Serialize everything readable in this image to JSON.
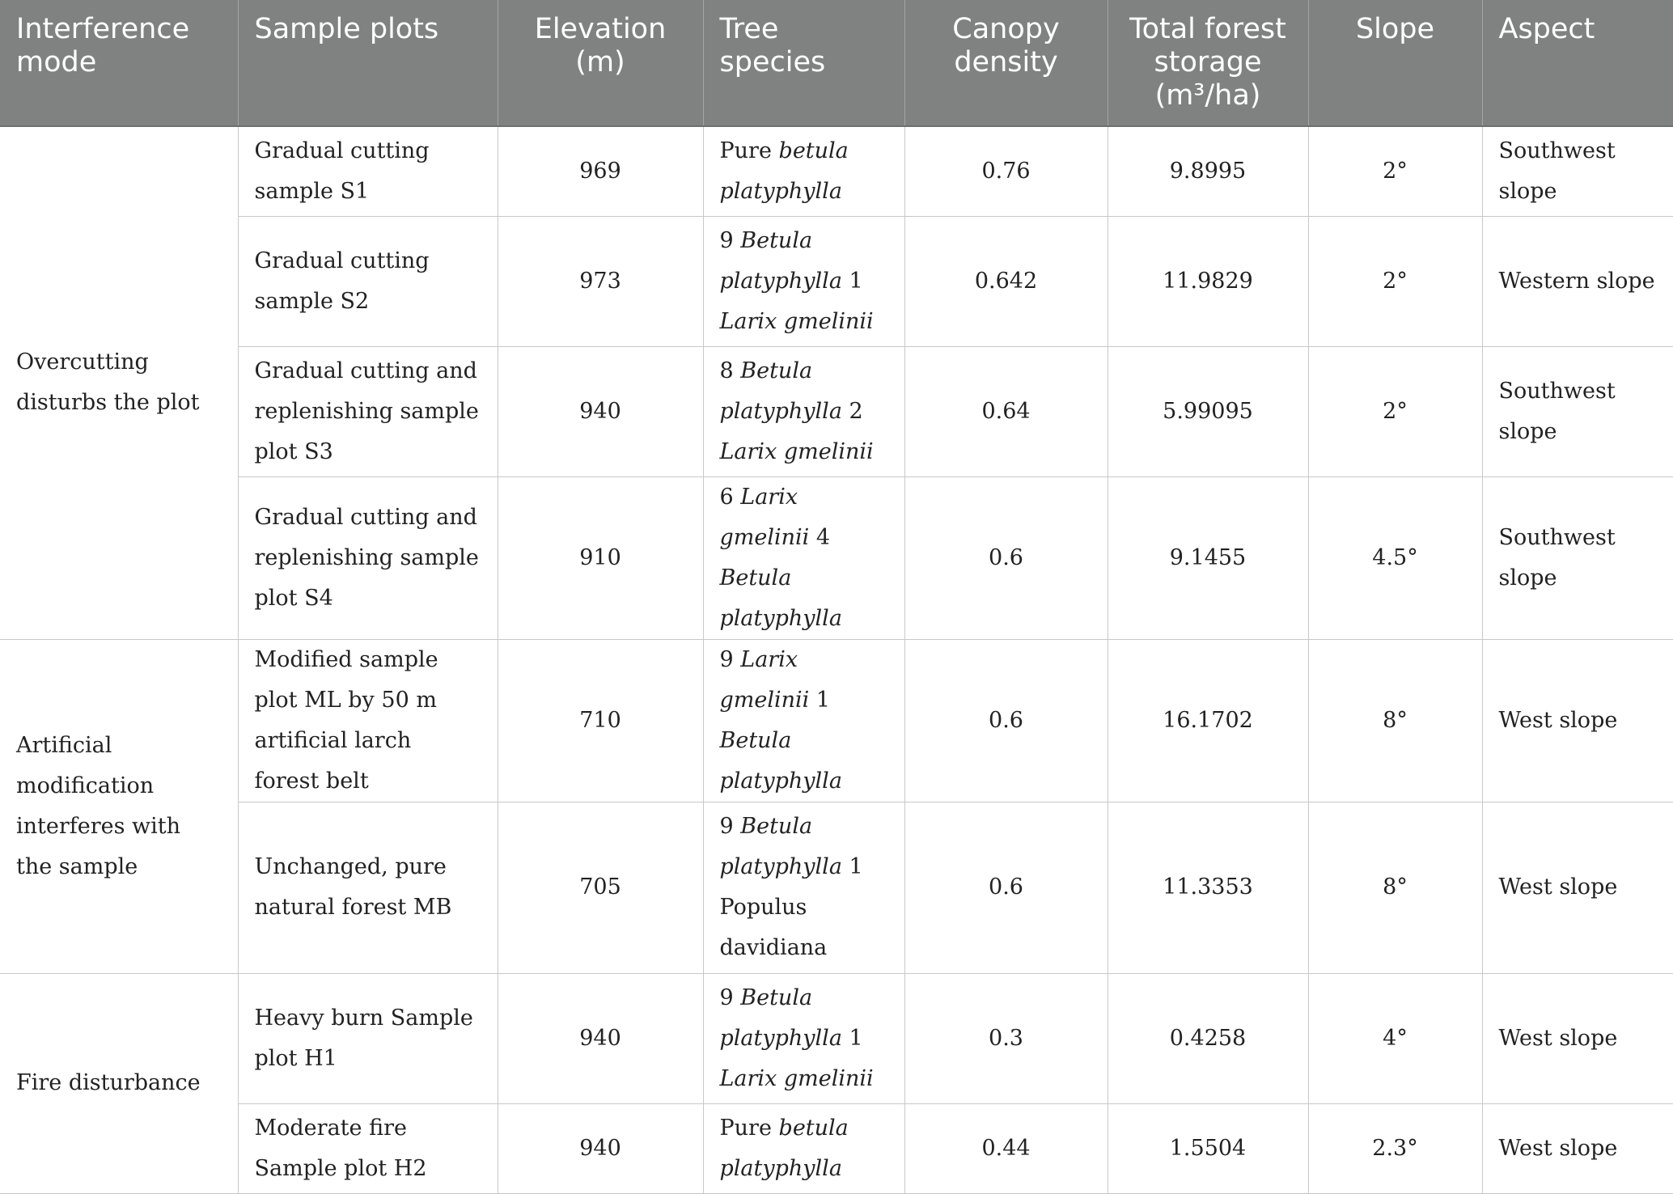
{
  "headers": [
    "Interference mode",
    "Sample plots",
    "Elevation (m)",
    "Tree species",
    "Canopy density",
    "Total forest storage (m³/ha)",
    "Slope",
    "Aspect"
  ],
  "groups": [
    "Overcutting disturbs the plot",
    "Artificial modification interferes with the sample",
    "Fire disturbance"
  ],
  "rows": [
    {
      "plot": "Gradual cutting sample S1",
      "elevation": "969",
      "species_a": "Pure ",
      "species_b": "betula platyphylla",
      "species_c": "",
      "species_d": "",
      "canopy": "0.76",
      "storage": "9.8995",
      "slope": "2°",
      "aspect": "Southwest slope"
    },
    {
      "plot": "Gradual cutting sample S2",
      "elevation": "973",
      "species_a": "9 ",
      "species_b": "Betula platyphylla",
      "species_c": " 1 ",
      "species_d": "Larix gmelinii",
      "canopy": "0.642",
      "storage": "11.9829",
      "slope": "2°",
      "aspect": "Western slope"
    },
    {
      "plot": "Gradual cutting and replenishing sample plot S3",
      "elevation": "940",
      "species_a": "8 ",
      "species_b": "Betula platyphylla",
      "species_c": " 2 ",
      "species_d": "Larix gmelinii",
      "canopy": "0.64",
      "storage": "5.99095",
      "slope": "2°",
      "aspect": "Southwest slope"
    },
    {
      "plot": "Gradual cutting and replenishing sample plot S4",
      "elevation": "910",
      "species_a": "6 ",
      "species_b": "Larix gmelinii",
      "species_c": " 4 ",
      "species_d": "Betula platyphylla",
      "canopy": "0.6",
      "storage": "9.1455",
      "slope": "4.5°",
      "aspect": "Southwest slope"
    },
    {
      "plot": "Modified sample plot ML by 50 m artificial larch forest belt",
      "elevation": "710",
      "species_a": "9 ",
      "species_b": "Larix gmelinii",
      "species_c": " 1 ",
      "species_d": "Betula platyphylla",
      "canopy": "0.6",
      "storage": "16.1702",
      "slope": "8°",
      "aspect": "West slope"
    },
    {
      "plot": "Unchanged, pure natural forest MB",
      "elevation": "705",
      "species_a": "9 ",
      "species_b": "Betula platyphylla",
      "species_c": " 1 Populus davidiana",
      "species_d": "",
      "canopy": "0.6",
      "storage": "11.3353",
      "slope": "8°",
      "aspect": "West slope"
    },
    {
      "plot": "Heavy burn Sample plot H1",
      "elevation": "940",
      "species_a": "9 ",
      "species_b": "Betula platyphylla",
      "species_c": " 1 ",
      "species_d": "Larix gmelinii",
      "canopy": "0.3",
      "storage": "0.4258",
      "slope": "4°",
      "aspect": "West slope"
    },
    {
      "plot": "Moderate fire Sample plot H2",
      "elevation": "940",
      "species_a": "Pure ",
      "species_b": "betula platyphylla",
      "species_c": "",
      "species_d": "",
      "canopy": "0.44",
      "storage": "1.5504",
      "slope": "2.3°",
      "aspect": "West slope"
    }
  ]
}
